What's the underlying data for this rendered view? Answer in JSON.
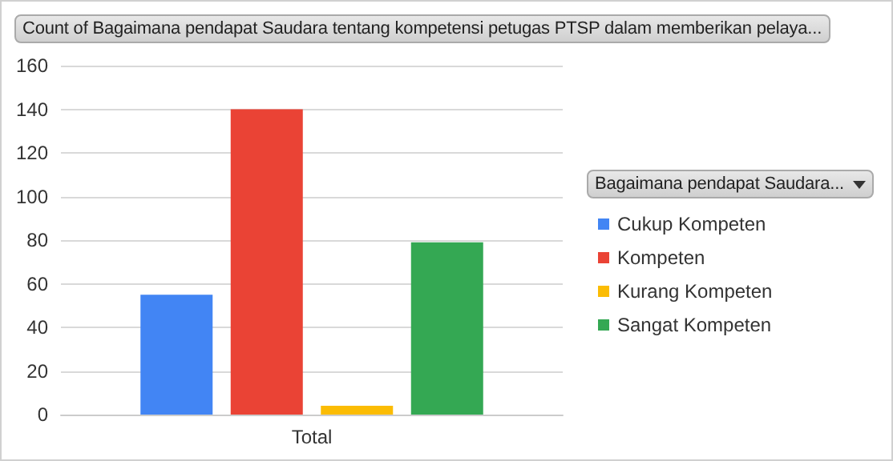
{
  "chart_data": {
    "type": "bar",
    "title": "Count of Bagaimana pendapat Saudara tentang kompetensi petugas PTSP dalam memberikan pelaya...",
    "legend_title": "Bagaimana pendapat Saudara...",
    "categories": [
      "Total"
    ],
    "series": [
      {
        "name": "Cukup Kompeten",
        "color": "#4285f4",
        "values": [
          55
        ]
      },
      {
        "name": "Kompeten",
        "color": "#ea4335",
        "values": [
          140
        ]
      },
      {
        "name": "Kurang Kompeten",
        "color": "#fbbc04",
        "values": [
          4
        ]
      },
      {
        "name": "Sangat Kompeten",
        "color": "#34a853",
        "values": [
          79
        ]
      }
    ],
    "ylim": [
      0,
      160
    ],
    "yticks": [
      0,
      20,
      40,
      60,
      80,
      100,
      120,
      140,
      160
    ],
    "grid": "y",
    "legend": "right"
  }
}
